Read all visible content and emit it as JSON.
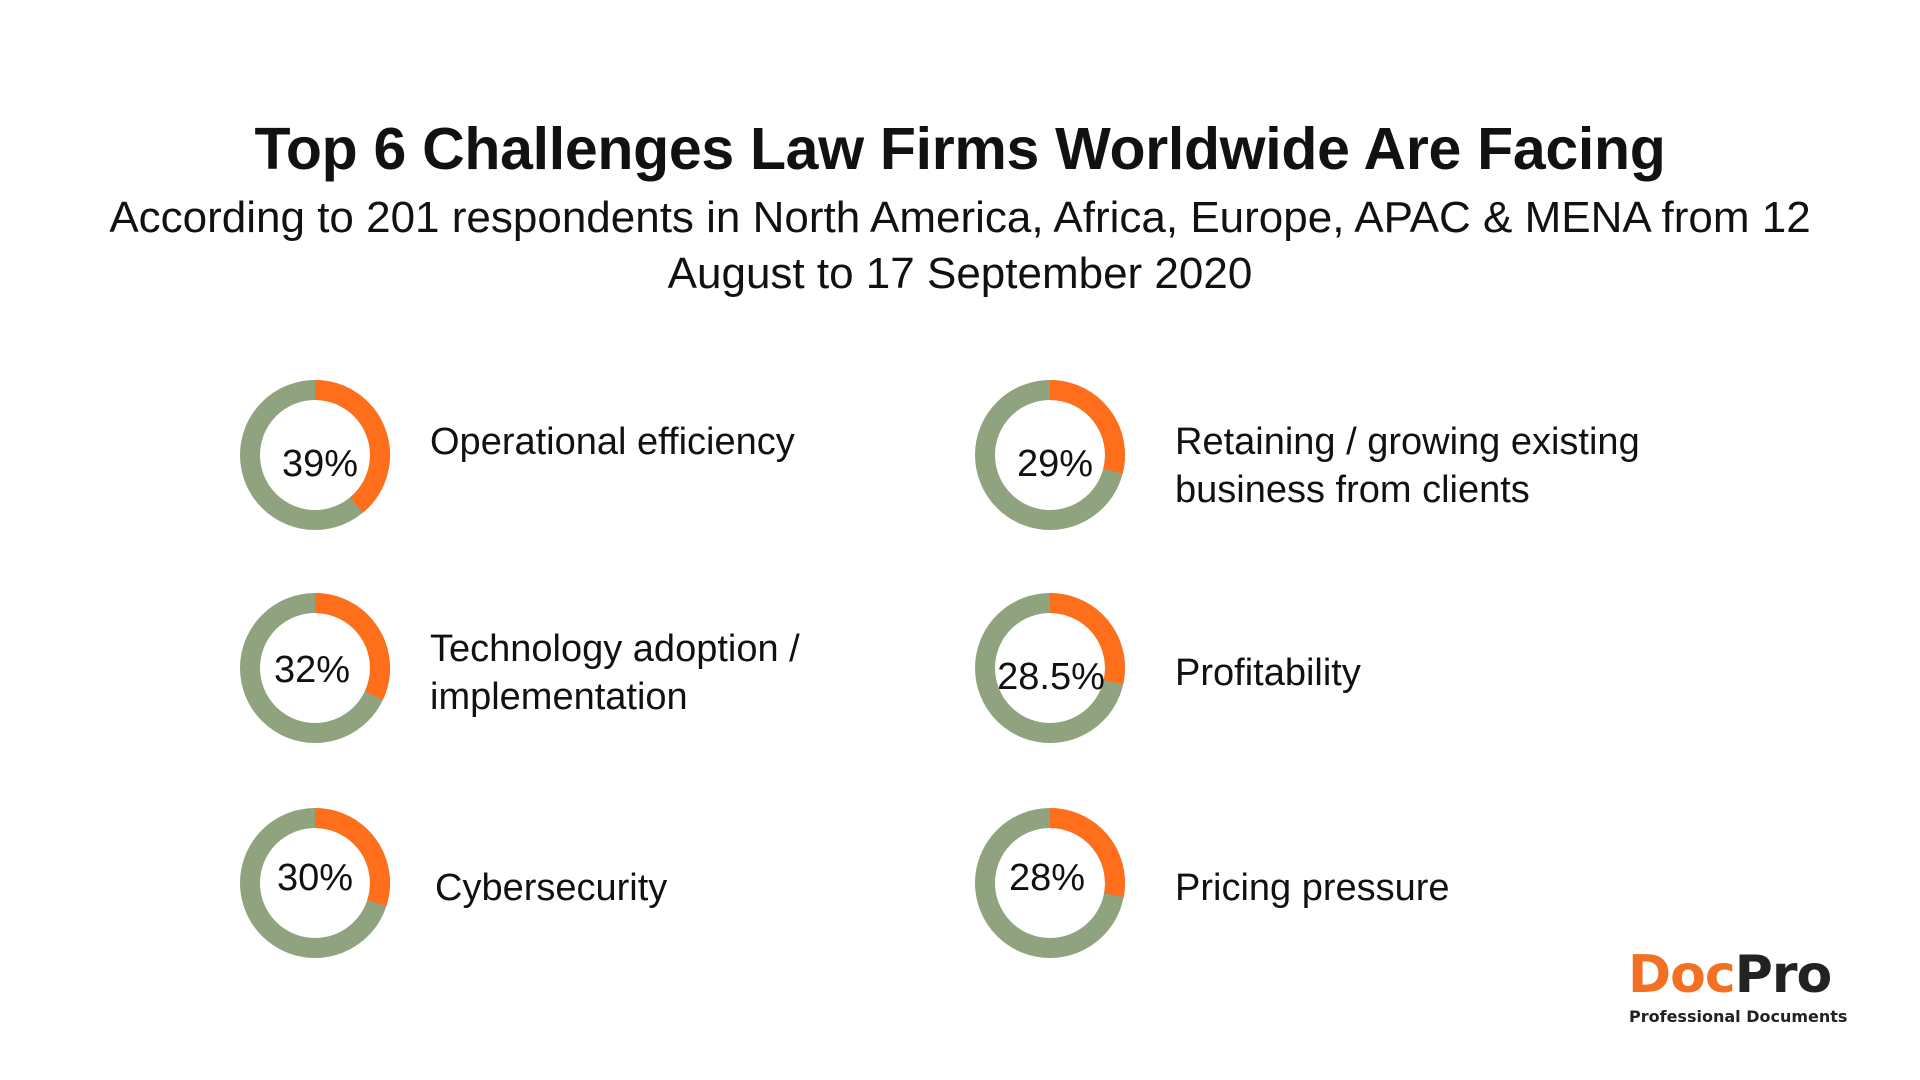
{
  "title": "Top 6 Challenges Law Firms Worldwide Are Facing",
  "subtitle": "According to 201 respondents in North America, Africa, Europe, APAC & MENA from 12 August to 17 September 2020",
  "colors": {
    "accent": "#FF6E1A",
    "track": "#8FA37F",
    "text": "#111111"
  },
  "logo": {
    "doc": "Doc",
    "pro": "Pro",
    "tagline": "Professional Documents"
  },
  "chart_data": {
    "type": "donut",
    "title": "Top 6 Challenges Law Firms Worldwide Are Facing",
    "subtitle": "According to 201 respondents in North America, Africa, Europe, APAC & MENA from 12 August to 17 September 2020",
    "unit": "%",
    "items": [
      {
        "label": "Operational efficiency",
        "value": 39,
        "display": "39%"
      },
      {
        "label": "Retaining / growing existing business from clients",
        "value": 29,
        "display": "29%"
      },
      {
        "label": "Technology adoption / implementation",
        "value": 32,
        "display": "32%"
      },
      {
        "label": "Profitability",
        "value": 28.5,
        "display": "28.5%"
      },
      {
        "label": "Cybersecurity",
        "value": 30,
        "display": "30%"
      },
      {
        "label": "Pricing pressure",
        "value": 28,
        "display": "28%"
      }
    ]
  }
}
